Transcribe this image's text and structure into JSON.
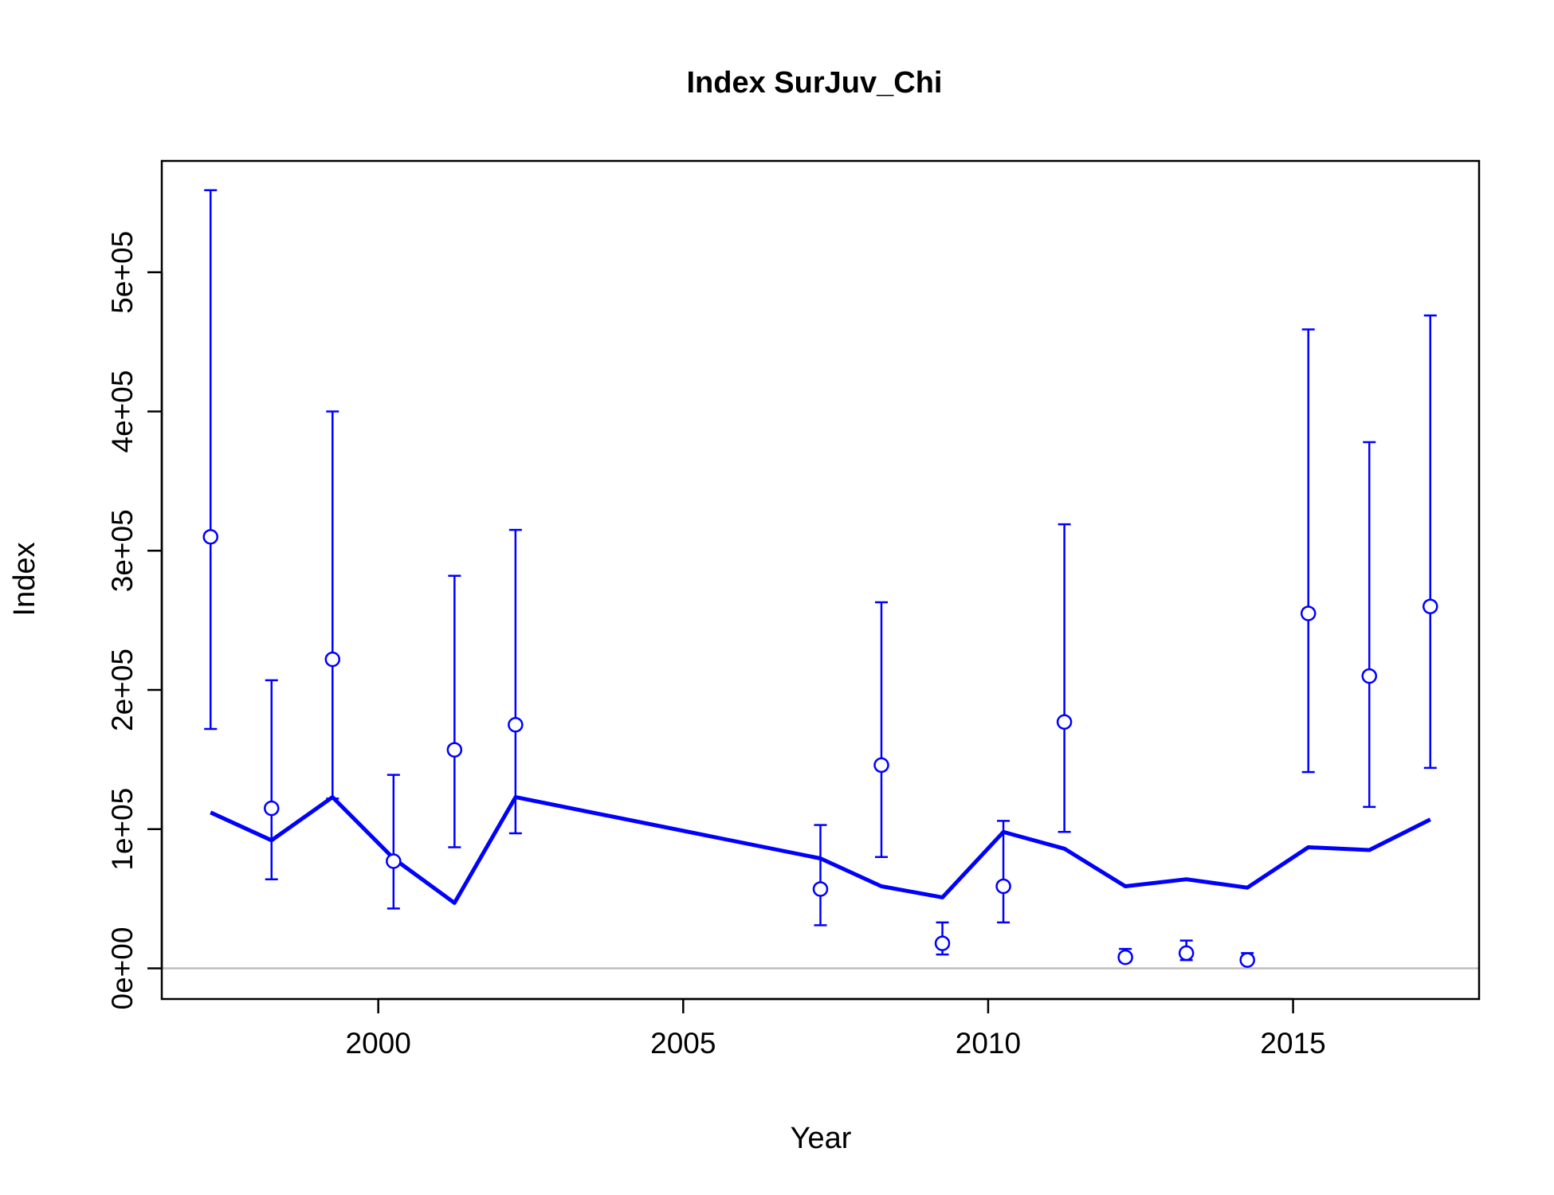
{
  "chart_data": {
    "type": "scatter",
    "title": "Index SurJuv_Chi",
    "xlabel": "Year",
    "ylabel": "Index",
    "xlim": [
      1996.45,
      2018.05
    ],
    "ylim": [
      -22000,
      580000
    ],
    "x_ticks": [
      2000,
      2005,
      2010,
      2015
    ],
    "x_tick_labels": [
      "2000",
      "2005",
      "2010",
      "2015"
    ],
    "y_ticks": [
      0,
      100000,
      200000,
      300000,
      400000,
      500000
    ],
    "y_tick_labels": [
      "0e+00",
      "1e+05",
      "2e+05",
      "3e+05",
      "4e+05",
      "5e+05"
    ],
    "reference_line": 0,
    "color": "#0000ff",
    "reference_color": "#bebebe",
    "observed": {
      "x": [
        1997.25,
        1998.25,
        1999.25,
        2000.25,
        2001.25,
        2002.25,
        2007.25,
        2008.25,
        2009.25,
        2010.25,
        2011.25,
        2012.25,
        2013.25,
        2014.25,
        2015.25,
        2016.25,
        2017.25
      ],
      "y": [
        310000,
        115000,
        222000,
        77000,
        157000,
        175000,
        57000,
        146000,
        18000,
        59000,
        177000,
        8000,
        11000,
        6000,
        255000,
        210000,
        260000
      ],
      "lower": [
        172000,
        64000,
        122000,
        43000,
        87000,
        97000,
        31000,
        80000,
        10000,
        33000,
        98000,
        5000,
        6000,
        4000,
        141000,
        116000,
        144000
      ],
      "upper": [
        559000,
        207000,
        400000,
        139000,
        282000,
        315000,
        103000,
        263000,
        33000,
        106000,
        319000,
        14000,
        20000,
        11000,
        459000,
        378000,
        469000
      ]
    },
    "expected": {
      "x": [
        1997.25,
        1998.25,
        1999.25,
        2000.25,
        2001.25,
        2002.25,
        2007.25,
        2008.25,
        2009.25,
        2010.25,
        2011.25,
        2012.25,
        2013.25,
        2014.25,
        2015.25,
        2016.25,
        2017.25
      ],
      "y": [
        112000,
        92000,
        123000,
        79000,
        47000,
        123000,
        79000,
        59000,
        51000,
        98000,
        86000,
        59000,
        64000,
        58000,
        87000,
        85000,
        107000
      ]
    }
  }
}
